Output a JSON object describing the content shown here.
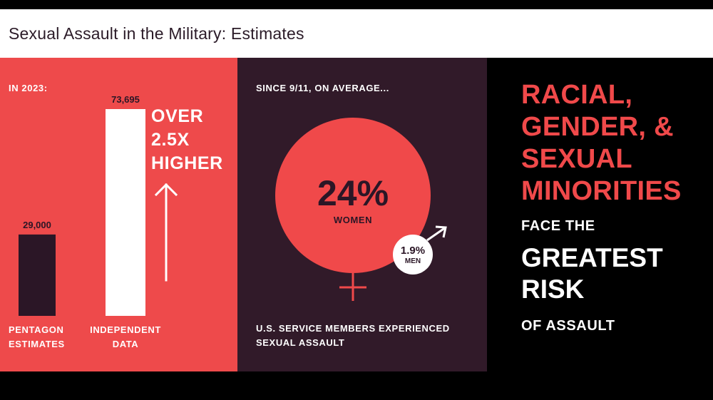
{
  "title": "Sexual Assault in the Military: Estimates",
  "colors": {
    "red": "#ee4a4b",
    "dark": "#311a29",
    "black": "#000000",
    "white": "#ffffff"
  },
  "panel1": {
    "heading": "IN 2023:",
    "comparison_line1": "OVER",
    "comparison_line2": "2.5X",
    "comparison_line3": "HIGHER",
    "arrow_icon": "up-arrow-icon",
    "bar_labels": [
      {
        "line1": "PENTAGON",
        "line2": "ESTIMATES"
      },
      {
        "line1": "INDEPENDENT",
        "line2": "DATA"
      }
    ]
  },
  "panel2": {
    "heading": "SINCE 9/11, ON AVERAGE...",
    "women_value": "24%",
    "women_label": "WOMEN",
    "men_value": "1.9%",
    "men_label": "MEN",
    "footer_line1": "U.S. SERVICE MEMBERS EXPERIENCED",
    "footer_line2": "SEXUAL ASSAULT",
    "female_icon": "female-symbol-icon",
    "male_icon": "male-symbol-icon"
  },
  "panel3": {
    "red_lines": [
      "RACIAL,",
      "GENDER, &",
      "SEXUAL",
      "MINORITIES"
    ],
    "face_the": "FACE THE",
    "greatest": "GREATEST",
    "risk": "RISK",
    "of_assault": "OF ASSAULT"
  },
  "chart_data": {
    "type": "bar",
    "title": "IN 2023:",
    "categories": [
      "PENTAGON ESTIMATES",
      "INDEPENDENT DATA"
    ],
    "values": [
      29000,
      73695
    ],
    "value_labels": [
      "29,000",
      "73,695"
    ],
    "ylim": [
      0,
      73695
    ]
  }
}
